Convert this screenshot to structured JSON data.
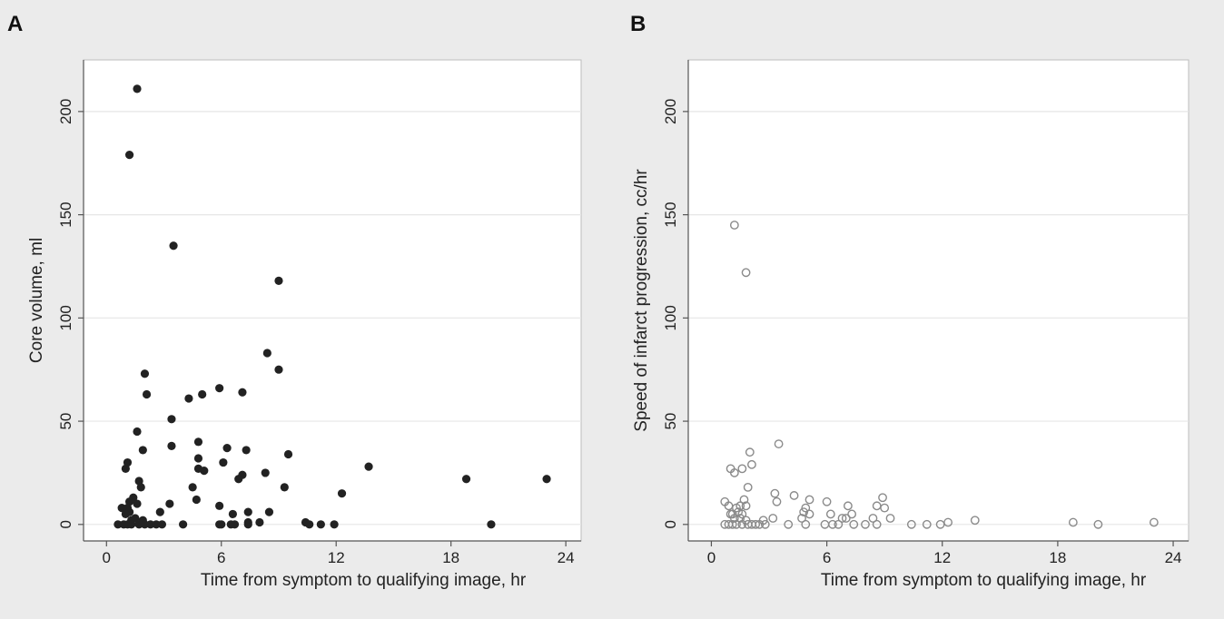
{
  "chart_data": [
    {
      "type": "scatter",
      "panel_label": "A",
      "title": "",
      "xlabel": "Time from symptom to qualifying image, hr",
      "ylabel": "Core volume, ml",
      "xlim": [
        -1.2,
        24.8
      ],
      "ylim": [
        -8,
        225
      ],
      "xticks": [
        "0",
        "6",
        "12",
        "18",
        "24"
      ],
      "yticks": [
        "0",
        "50",
        "100",
        "150",
        "200"
      ],
      "grid": true,
      "marker": "filled",
      "marker_color": "#222222",
      "points": [
        [
          1.6,
          211
        ],
        [
          1.2,
          179
        ],
        [
          3.5,
          135
        ],
        [
          9.0,
          118
        ],
        [
          8.4,
          83
        ],
        [
          9.0,
          75
        ],
        [
          2.0,
          73
        ],
        [
          2.1,
          63
        ],
        [
          4.3,
          61
        ],
        [
          5.0,
          63
        ],
        [
          5.9,
          66
        ],
        [
          7.1,
          64
        ],
        [
          3.4,
          51
        ],
        [
          1.6,
          45
        ],
        [
          4.8,
          40
        ],
        [
          3.4,
          38
        ],
        [
          1.9,
          36
        ],
        [
          6.3,
          37
        ],
        [
          7.3,
          36
        ],
        [
          9.5,
          34
        ],
        [
          4.8,
          32
        ],
        [
          6.1,
          30
        ],
        [
          1.1,
          30
        ],
        [
          1.0,
          27
        ],
        [
          4.8,
          27
        ],
        [
          5.1,
          26
        ],
        [
          8.3,
          25
        ],
        [
          7.1,
          24
        ],
        [
          6.9,
          22
        ],
        [
          13.7,
          28
        ],
        [
          18.8,
          22
        ],
        [
          23.0,
          22
        ],
        [
          1.7,
          21
        ],
        [
          1.8,
          18
        ],
        [
          4.5,
          18
        ],
        [
          9.3,
          18
        ],
        [
          12.3,
          15
        ],
        [
          1.4,
          13
        ],
        [
          4.7,
          12
        ],
        [
          1.2,
          11
        ],
        [
          1.6,
          10
        ],
        [
          3.3,
          10
        ],
        [
          5.9,
          9
        ],
        [
          0.8,
          8
        ],
        [
          1.1,
          8
        ],
        [
          1.2,
          6
        ],
        [
          1.0,
          5
        ],
        [
          2.8,
          6
        ],
        [
          6.6,
          5
        ],
        [
          7.4,
          6
        ],
        [
          8.5,
          6
        ],
        [
          1.5,
          3
        ],
        [
          1.3,
          2
        ],
        [
          1.9,
          2
        ],
        [
          7.4,
          1
        ],
        [
          8.0,
          1
        ],
        [
          10.4,
          1
        ],
        [
          0.6,
          0
        ],
        [
          0.9,
          0
        ],
        [
          1.1,
          0
        ],
        [
          1.3,
          0
        ],
        [
          1.7,
          0
        ],
        [
          2.0,
          0
        ],
        [
          2.3,
          0
        ],
        [
          2.6,
          0
        ],
        [
          2.9,
          0
        ],
        [
          4.0,
          0
        ],
        [
          5.9,
          0
        ],
        [
          6.0,
          0
        ],
        [
          6.5,
          0
        ],
        [
          6.7,
          0
        ],
        [
          7.4,
          0
        ],
        [
          10.6,
          0
        ],
        [
          11.2,
          0
        ],
        [
          11.9,
          0
        ],
        [
          20.1,
          0
        ]
      ]
    },
    {
      "type": "scatter",
      "panel_label": "B",
      "title": "",
      "xlabel": "Time from symptom to qualifying image, hr",
      "ylabel": "Speed of infarct progression, cc/hr",
      "xlim": [
        -1.2,
        24.8
      ],
      "ylim": [
        -8,
        225
      ],
      "xticks": [
        "0",
        "6",
        "12",
        "18",
        "24"
      ],
      "yticks": [
        "0",
        "50",
        "100",
        "150",
        "200"
      ],
      "grid": true,
      "marker": "hollow",
      "marker_color": "#8a8a8a",
      "points": [
        [
          1.2,
          145
        ],
        [
          1.8,
          122
        ],
        [
          3.5,
          39
        ],
        [
          2.0,
          35
        ],
        [
          2.1,
          29
        ],
        [
          1.0,
          27
        ],
        [
          1.6,
          27
        ],
        [
          1.2,
          25
        ],
        [
          1.9,
          18
        ],
        [
          3.3,
          15
        ],
        [
          4.3,
          14
        ],
        [
          8.9,
          13
        ],
        [
          5.1,
          12
        ],
        [
          1.7,
          12
        ],
        [
          0.7,
          11
        ],
        [
          3.4,
          11
        ],
        [
          6.0,
          11
        ],
        [
          0.9,
          9
        ],
        [
          1.5,
          9
        ],
        [
          1.8,
          9
        ],
        [
          7.1,
          9
        ],
        [
          8.6,
          9
        ],
        [
          1.3,
          8
        ],
        [
          4.9,
          8
        ],
        [
          9.0,
          8
        ],
        [
          1.4,
          6
        ],
        [
          4.8,
          6
        ],
        [
          1.0,
          5
        ],
        [
          1.1,
          5
        ],
        [
          1.6,
          5
        ],
        [
          5.1,
          5
        ],
        [
          6.2,
          5
        ],
        [
          7.3,
          5
        ],
        [
          1.2,
          3
        ],
        [
          1.5,
          3
        ],
        [
          3.2,
          3
        ],
        [
          4.7,
          3
        ],
        [
          6.8,
          3
        ],
        [
          7.0,
          3
        ],
        [
          8.4,
          3
        ],
        [
          9.3,
          3
        ],
        [
          1.8,
          2
        ],
        [
          2.7,
          2
        ],
        [
          13.7,
          2
        ],
        [
          0.7,
          0
        ],
        [
          0.9,
          0
        ],
        [
          1.1,
          0
        ],
        [
          1.3,
          0
        ],
        [
          1.6,
          0
        ],
        [
          1.9,
          0
        ],
        [
          2.1,
          0
        ],
        [
          2.3,
          0
        ],
        [
          2.5,
          0
        ],
        [
          2.8,
          0
        ],
        [
          4.0,
          0
        ],
        [
          4.9,
          0
        ],
        [
          5.9,
          0
        ],
        [
          6.3,
          0
        ],
        [
          6.6,
          0
        ],
        [
          7.4,
          0
        ],
        [
          8.0,
          0
        ],
        [
          8.6,
          0
        ],
        [
          10.4,
          0
        ],
        [
          11.2,
          0
        ],
        [
          11.9,
          0
        ],
        [
          12.3,
          1
        ],
        [
          18.8,
          1
        ],
        [
          20.1,
          0
        ],
        [
          23.0,
          1
        ]
      ]
    }
  ]
}
